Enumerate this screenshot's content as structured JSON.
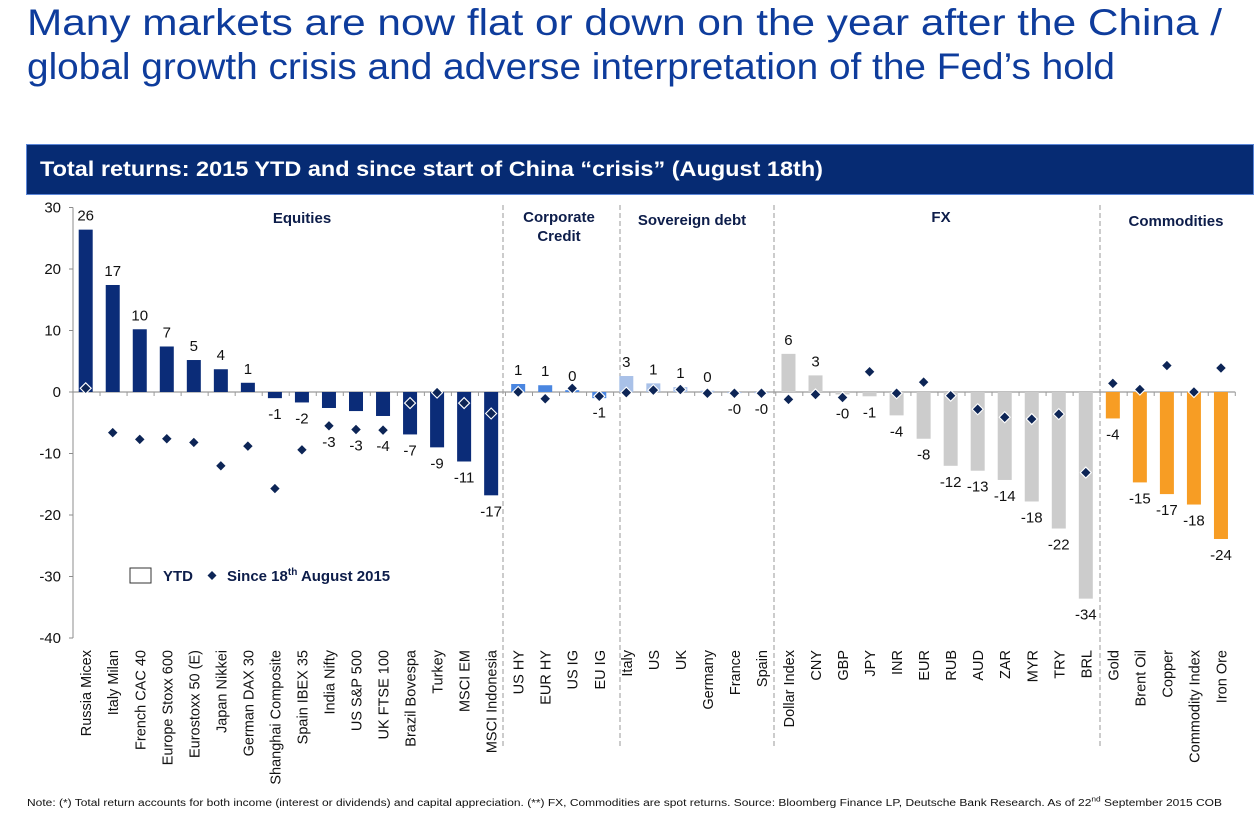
{
  "page": {
    "title_line1": "Many markets are now flat or down on the year after the China /",
    "title_line2": "global growth crisis and adverse interpretation of the Fed’s hold",
    "banner_title": "Total returns: 2015 YTD and since start of China “crisis” (August 18th)",
    "note": {
      "text": "Note: (*) Total return accounts for both income (interest or dividends) and capital appreciation. (**) FX, Commodities are spot returns.  Source: Bloomberg Finance LP, Deutsche Bank Research. As of  22",
      "sup": "nd",
      "text_end": " September 2015 COB"
    }
  },
  "chart_data": {
    "type": "bar",
    "title": "Total returns: 2015 YTD and since start of China “crisis” (August 18th)",
    "xlabel": "",
    "ylabel": "",
    "ylim": [
      -40,
      30
    ],
    "yticks": [
      30,
      20,
      10,
      0,
      -10,
      -20,
      -30,
      -40
    ],
    "grid": false,
    "categories": [
      "Russia Micex",
      "Italy Milan",
      "French CAC 40",
      "Europe Stoxx 600",
      "Eurostoxx 50 (E)",
      "Japan Nikkei",
      "German DAX 30",
      "Shanghai Composite",
      "Spain IBEX 35",
      "India Nifty",
      "US S&P 500",
      "UK FTSE 100",
      "Brazil Bovespa",
      "Turkey",
      "MSCI EM",
      "MSCI Indonesia",
      "US HY",
      "EUR HY",
      "US IG",
      "EU IG",
      "Italy",
      "US",
      "UK",
      "Germany",
      "France",
      "Spain",
      "Dollar Index",
      "CNY",
      "GBP",
      "JPY",
      "INR",
      "EUR",
      "RUB",
      "AUD",
      "ZAR",
      "MYR",
      "TRY",
      "BRL",
      "Gold",
      "Brent Oil",
      "Copper",
      "Commodity Index",
      "Iron Ore"
    ],
    "groups": [
      {
        "name": "Equities",
        "label_lines": [
          "Equities"
        ],
        "start": 0,
        "count": 16,
        "color": "#0b2c78"
      },
      {
        "name": "Corporate Credit",
        "label_lines": [
          "Corporate",
          "Credit"
        ],
        "start": 16,
        "count": 4,
        "color": "#4a86e0"
      },
      {
        "name": "Sovereign debt",
        "label_lines": [
          "Sovereign debt"
        ],
        "start": 20,
        "count": 6,
        "color": "#a9c1e8"
      },
      {
        "name": "FX",
        "label_lines": [
          "FX"
        ],
        "start": 26,
        "count": 12,
        "color": "#cccccc"
      },
      {
        "name": "Commodities",
        "label_lines": [
          "Commodities"
        ],
        "start": 38,
        "count": 5,
        "color": "#f79d24"
      }
    ],
    "series": [
      {
        "name": "YTD",
        "type": "bar",
        "values": [
          26.4,
          17.4,
          10.2,
          7.4,
          5.2,
          3.7,
          1.5,
          -1.0,
          -1.7,
          -2.6,
          -3.1,
          -3.9,
          -6.9,
          -9.0,
          -11.3,
          -16.8,
          1.3,
          1.1,
          0.3,
          -1.0,
          2.6,
          1.4,
          0.8,
          0.2,
          -0.2,
          -0.2,
          6.2,
          2.7,
          -0.4,
          -0.7,
          -3.8,
          -7.6,
          -12.0,
          -12.8,
          -14.3,
          -17.8,
          -22.2,
          -33.6,
          -4.3,
          -14.7,
          -16.6,
          -18.3,
          -23.9
        ],
        "labels": [
          "26",
          "17",
          "10",
          "7",
          "5",
          "4",
          "1",
          "-1",
          "-2",
          "-3",
          "-3",
          "-4",
          "-7",
          "-9",
          "-11",
          "-17",
          "1",
          "1",
          "0",
          "-1",
          "3",
          "1",
          "1",
          "0",
          "-0",
          "-0",
          "6",
          "3",
          "-0",
          "-1",
          "-4",
          "-8",
          "-12",
          "-13",
          "-14",
          "-18",
          "-22",
          "-34",
          "-4",
          "-15",
          "-17",
          "-18",
          "-24"
        ]
      },
      {
        "name": "Since 18th August 2015",
        "type": "scatter",
        "marker": "diamond",
        "color": "#0d2556",
        "values": [
          0.6,
          -6.6,
          -7.7,
          -7.6,
          -8.2,
          -12.0,
          -8.8,
          -15.7,
          -9.4,
          -5.5,
          -6.1,
          -6.2,
          -1.8,
          -0.1,
          -1.8,
          -3.5,
          0.0,
          -1.1,
          0.6,
          -0.7,
          -0.1,
          0.3,
          0.4,
          -0.2,
          -0.2,
          -0.2,
          -1.2,
          -0.4,
          -0.9,
          3.3,
          -0.2,
          1.6,
          -0.6,
          -2.8,
          -4.1,
          -4.4,
          -3.6,
          -13.1,
          1.4,
          0.4,
          4.3,
          0.0,
          3.9
        ]
      }
    ],
    "legend": {
      "position": "lower-left",
      "items": [
        {
          "label": "YTD",
          "marker": "box"
        },
        {
          "label": "Since 18th August 2015",
          "label_parts": [
            "Since 18",
            "th",
            " August 2015"
          ],
          "marker": "diamond"
        }
      ]
    }
  }
}
